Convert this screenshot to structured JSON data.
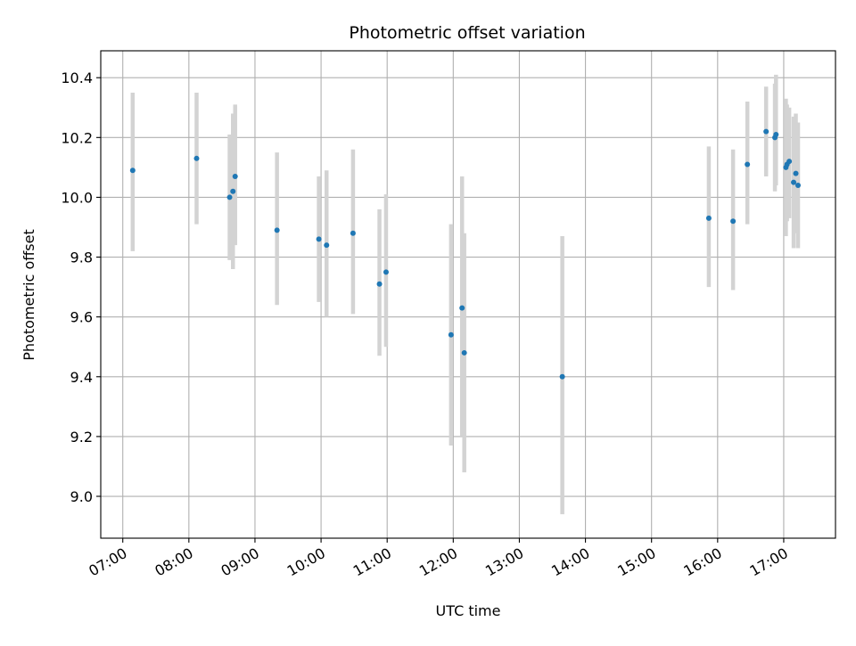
{
  "chart_data": {
    "type": "scatter",
    "title": "Photometric offset variation",
    "xlabel": "UTC time",
    "ylabel": "Photometric offset",
    "grid": true,
    "x_is_time": true,
    "xlim": [
      "06:40",
      "17:47"
    ],
    "ylim": [
      8.86,
      10.49
    ],
    "x_ticks": [
      "07:00",
      "08:00",
      "09:00",
      "10:00",
      "11:00",
      "12:00",
      "13:00",
      "14:00",
      "15:00",
      "16:00",
      "17:00"
    ],
    "y_ticks": [
      "9.0",
      "9.2",
      "9.4",
      "9.6",
      "9.8",
      "10.0",
      "10.2",
      "10.4"
    ],
    "point_color": "#1f77b4",
    "errorbar_color": "#d3d3d3",
    "points": [
      {
        "x": "07:09",
        "y": 10.09,
        "ylow": 9.82,
        "yhigh": 10.35
      },
      {
        "x": "08:07",
        "y": 10.13,
        "ylow": 9.91,
        "yhigh": 10.35
      },
      {
        "x": "08:37",
        "y": 10.0,
        "ylow": 9.79,
        "yhigh": 10.21
      },
      {
        "x": "08:40",
        "y": 10.02,
        "ylow": 9.76,
        "yhigh": 10.28
      },
      {
        "x": "08:42",
        "y": 10.07,
        "ylow": 9.84,
        "yhigh": 10.31
      },
      {
        "x": "09:20",
        "y": 9.89,
        "ylow": 9.64,
        "yhigh": 10.15
      },
      {
        "x": "09:58",
        "y": 9.86,
        "ylow": 9.65,
        "yhigh": 10.07
      },
      {
        "x": "10:05",
        "y": 9.84,
        "ylow": 9.6,
        "yhigh": 10.09
      },
      {
        "x": "10:29",
        "y": 9.88,
        "ylow": 9.61,
        "yhigh": 10.16
      },
      {
        "x": "10:53",
        "y": 9.71,
        "ylow": 9.47,
        "yhigh": 9.96
      },
      {
        "x": "10:59",
        "y": 9.75,
        "ylow": 9.5,
        "yhigh": 10.01
      },
      {
        "x": "11:58",
        "y": 9.54,
        "ylow": 9.17,
        "yhigh": 9.91
      },
      {
        "x": "12:08",
        "y": 9.63,
        "ylow": 9.2,
        "yhigh": 10.07
      },
      {
        "x": "12:10",
        "y": 9.48,
        "ylow": 9.08,
        "yhigh": 9.88
      },
      {
        "x": "13:39",
        "y": 9.4,
        "ylow": 8.94,
        "yhigh": 9.87
      },
      {
        "x": "15:52",
        "y": 9.93,
        "ylow": 9.7,
        "yhigh": 10.17
      },
      {
        "x": "16:14",
        "y": 9.92,
        "ylow": 9.69,
        "yhigh": 10.16
      },
      {
        "x": "16:27",
        "y": 10.11,
        "ylow": 9.91,
        "yhigh": 10.32
      },
      {
        "x": "16:44",
        "y": 10.22,
        "ylow": 10.07,
        "yhigh": 10.37
      },
      {
        "x": "16:52",
        "y": 10.2,
        "ylow": 10.02,
        "yhigh": 10.38
      },
      {
        "x": "16:53",
        "y": 10.21,
        "ylow": 10.04,
        "yhigh": 10.41
      },
      {
        "x": "17:02",
        "y": 10.1,
        "ylow": 9.87,
        "yhigh": 10.33
      },
      {
        "x": "17:03",
        "y": 10.11,
        "ylow": 9.92,
        "yhigh": 10.31
      },
      {
        "x": "17:05",
        "y": 10.12,
        "ylow": 9.93,
        "yhigh": 10.3
      },
      {
        "x": "17:09",
        "y": 10.05,
        "ylow": 9.83,
        "yhigh": 10.27
      },
      {
        "x": "17:11",
        "y": 10.08,
        "ylow": 9.88,
        "yhigh": 10.28
      },
      {
        "x": "17:13",
        "y": 10.04,
        "ylow": 9.83,
        "yhigh": 10.25
      }
    ]
  }
}
